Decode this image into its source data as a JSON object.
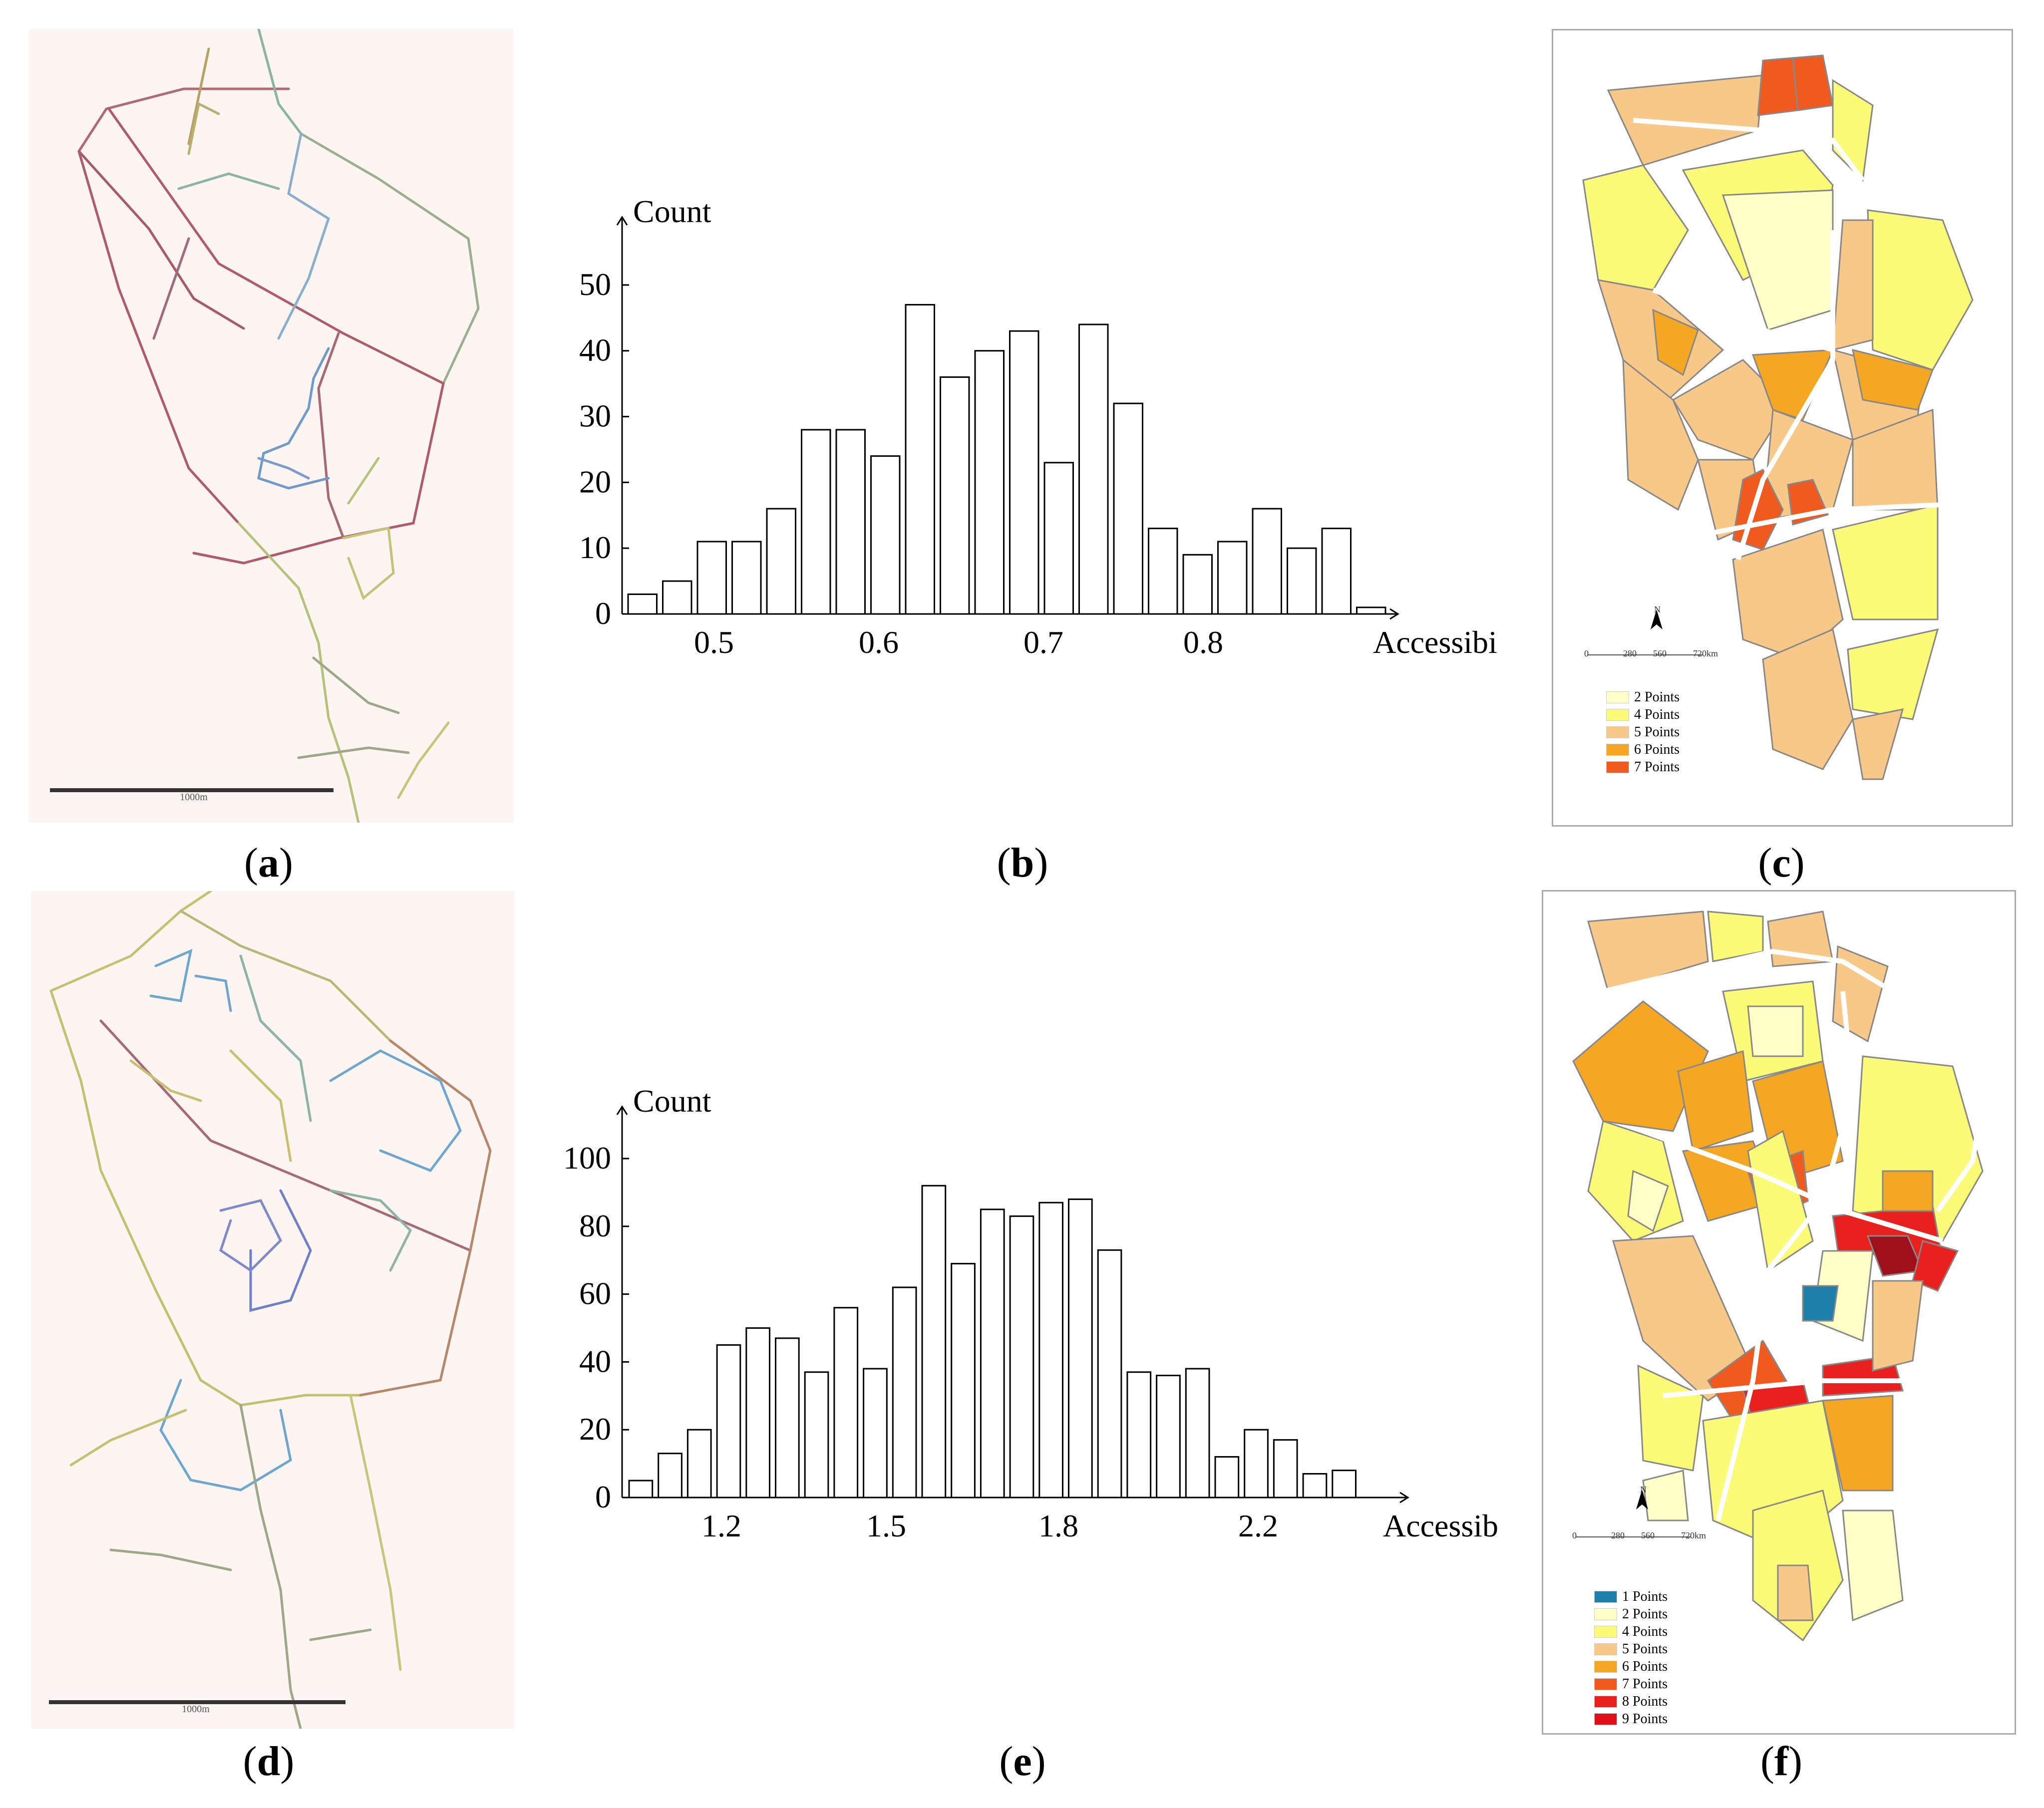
{
  "panels": {
    "a": {
      "label": "a",
      "scalebar": "1000m"
    },
    "b": {
      "label": "b"
    },
    "c": {
      "label": "c"
    },
    "d": {
      "label": "d",
      "scalebar": "1000m"
    },
    "e": {
      "label": "e"
    },
    "f": {
      "label": "f"
    }
  },
  "maps": {
    "c": {
      "north": "N",
      "scale_ticks": [
        "0",
        "280",
        "560",
        "720km"
      ],
      "legend": [
        {
          "label": "2 Points",
          "color": "#ffffc8"
        },
        {
          "label": "4 Points",
          "color": "#fbfb78"
        },
        {
          "label": "5 Points",
          "color": "#f8c888"
        },
        {
          "label": "6 Points",
          "color": "#f5a623"
        },
        {
          "label": "7 Points",
          "color": "#f05a1e"
        }
      ]
    },
    "f": {
      "north": "N",
      "scale_ticks": [
        "0",
        "280",
        "560",
        "720km"
      ],
      "legend": [
        {
          "label": "1 Points",
          "color": "#1e7fa8"
        },
        {
          "label": "2 Points",
          "color": "#ffffc8"
        },
        {
          "label": "4 Points",
          "color": "#fbfb78"
        },
        {
          "label": "5 Points",
          "color": "#f8c888"
        },
        {
          "label": "6 Points",
          "color": "#f5a623"
        },
        {
          "label": "7 Points",
          "color": "#f05a1e"
        },
        {
          "label": "8 Points",
          "color": "#e8201e"
        },
        {
          "label": "9 Points",
          "color": "#e01018"
        }
      ]
    }
  },
  "chart_data": [
    {
      "id": "b",
      "type": "bar",
      "xlabel": "Accessibility",
      "ylabel": "Count",
      "ylim": [
        0,
        55
      ],
      "yticks": [
        0,
        10,
        20,
        30,
        40,
        50
      ],
      "xticks": [
        0.5,
        0.6,
        0.7,
        0.8
      ],
      "bin_start": 0.45,
      "bin_width": 0.02,
      "values": [
        3,
        5,
        11,
        11,
        16,
        28,
        28,
        24,
        47,
        36,
        40,
        43,
        23,
        44,
        32,
        13,
        9,
        11,
        16,
        10,
        13,
        1
      ]
    },
    {
      "id": "e",
      "type": "bar",
      "xlabel": "Accessibility",
      "ylabel": "Count",
      "ylim": [
        0,
        105
      ],
      "yticks": [
        0,
        20,
        40,
        60,
        80,
        100
      ],
      "xticks": [
        1.2,
        1.5,
        1.8,
        2.2
      ],
      "bin_start": 1.0,
      "bin_width": 0.07,
      "values": [
        5,
        13,
        20,
        45,
        50,
        47,
        37,
        56,
        38,
        62,
        92,
        69,
        85,
        83,
        87,
        88,
        73,
        37,
        36,
        38,
        12,
        20,
        17,
        7,
        8
      ]
    }
  ]
}
